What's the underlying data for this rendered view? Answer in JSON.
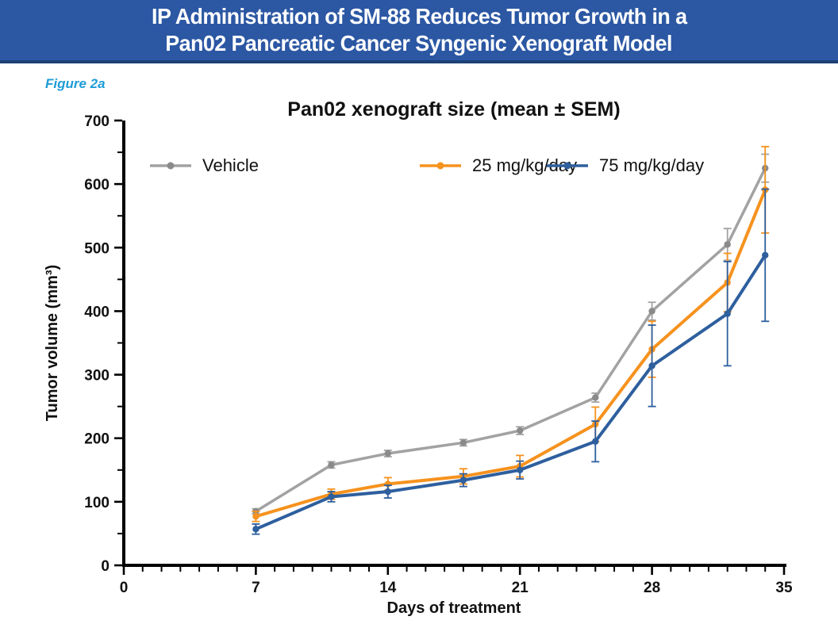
{
  "header": {
    "title_line1": "IP Administration of SM-88 Reduces Tumor Growth in a",
    "title_line2": "Pan02 Pancreatic Cancer Syngenic Xenograft Model"
  },
  "figure_label": "Figure 2a",
  "theme": {
    "header_bg": "#2b57a3",
    "header_border": "#1d4178",
    "header_text": "#ffffff",
    "figure_label_color": "#1e9cd7",
    "axis_color": "#000000",
    "tick_text_color": "#111111"
  },
  "chart_data": {
    "type": "line",
    "title": "Pan02 xenograft size (mean ± SEM)",
    "xlabel": "Days of treatment",
    "ylabel": "Tumor volume (mm³)",
    "xlim": [
      0,
      35
    ],
    "ylim": [
      0,
      700
    ],
    "x_major_ticks": [
      0,
      7,
      14,
      21,
      28,
      35
    ],
    "x_minor_step": 1,
    "y_major_ticks": [
      0,
      100,
      200,
      300,
      400,
      500,
      600,
      700
    ],
    "y_minor_step": 50,
    "grid": false,
    "legend_position": "top-inside",
    "error_bars": "SEM",
    "x": [
      7,
      11,
      14,
      18,
      21,
      25,
      28,
      32,
      34
    ],
    "series": [
      {
        "name": "Vehicle",
        "color": "#a2a2a2",
        "marker_color": "#8a8a8a",
        "values": [
          85,
          158,
          176,
          193,
          212,
          264,
          400,
          505,
          625
        ],
        "sem": [
          4,
          5,
          5,
          5,
          6,
          7,
          14,
          25,
          22
        ]
      },
      {
        "name": "25 mg/kg/day",
        "color": "#f6921e",
        "marker_color": "#f6921e",
        "values": [
          77,
          112,
          128,
          140,
          156,
          222,
          340,
          445,
          591
        ],
        "sem": [
          8,
          8,
          10,
          12,
          17,
          27,
          44,
          46,
          68
        ]
      },
      {
        "name": "75 mg/kg/day",
        "color": "#2e5f9e",
        "marker_color": "#2e5f9e",
        "values": [
          57,
          108,
          116,
          134,
          150,
          195,
          314,
          396,
          488
        ],
        "sem": [
          8,
          8,
          10,
          10,
          14,
          32,
          64,
          82,
          104
        ]
      }
    ]
  }
}
